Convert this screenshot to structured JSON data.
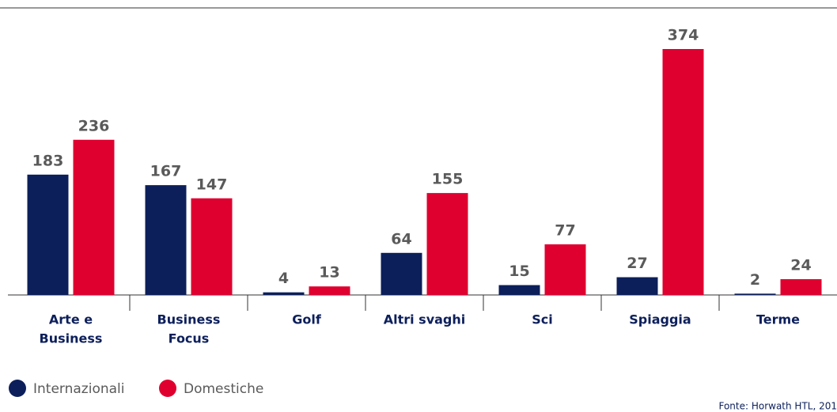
{
  "chart_data": {
    "type": "bar",
    "categories": [
      [
        "Arte e",
        "Business"
      ],
      [
        "Business",
        "Focus"
      ],
      [
        "Golf"
      ],
      [
        "Altri svaghi"
      ],
      [
        "Sci"
      ],
      [
        "Spiaggia"
      ],
      [
        "Terme"
      ]
    ],
    "series": [
      {
        "name": "Internazionali",
        "color": "#0c1f5b",
        "values": [
          183,
          167,
          4,
          64,
          15,
          27,
          2
        ]
      },
      {
        "name": "Domestiche",
        "color": "#e00030",
        "values": [
          236,
          147,
          13,
          155,
          77,
          374,
          24
        ]
      }
    ],
    "source": "Fonte: Horwath HTL, 201"
  }
}
